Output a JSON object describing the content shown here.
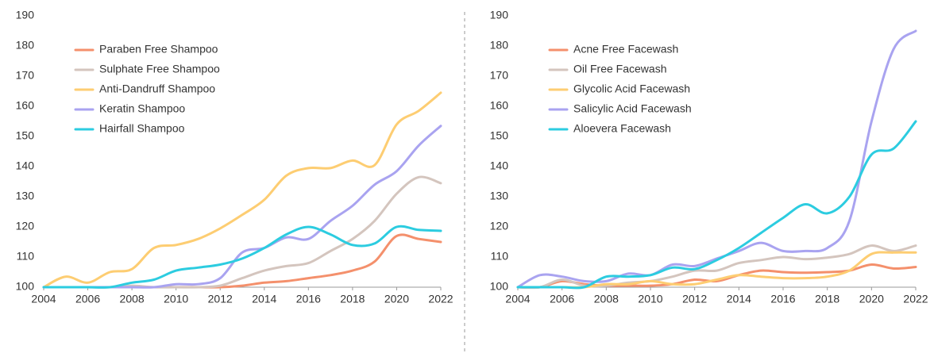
{
  "chart_data": [
    {
      "type": "line",
      "x": [
        2004,
        2005,
        2006,
        2007,
        2008,
        2009,
        2010,
        2011,
        2012,
        2013,
        2014,
        2015,
        2016,
        2017,
        2018,
        2019,
        2020,
        2021,
        2022
      ],
      "xlim": [
        2004,
        2022
      ],
      "xticks": [
        2004,
        2006,
        2008,
        2010,
        2012,
        2014,
        2016,
        2018,
        2020,
        2022
      ],
      "ylim": [
        100,
        190
      ],
      "yticks": [
        100,
        110,
        120,
        130,
        140,
        150,
        160,
        170,
        180,
        190
      ],
      "legend": "upper left",
      "series": [
        {
          "name": "Paraben Free Shampoo",
          "color": "#f4906c",
          "values": [
            100,
            100,
            100,
            100,
            100,
            100,
            100,
            100,
            100,
            100.5,
            101.5,
            102,
            103,
            104,
            105.5,
            108.5,
            117,
            116,
            115
          ]
        },
        {
          "name": "Sulphate Free Shampoo",
          "color": "#d4c5be",
          "values": [
            100,
            100,
            100,
            100,
            100.5,
            100,
            100,
            100,
            100.5,
            103,
            105.5,
            107,
            108,
            112,
            116,
            122,
            131,
            136.5,
            134.5
          ]
        },
        {
          "name": "Anti-Dandruff Shampoo",
          "color": "#fdcd72",
          "values": [
            100,
            103.5,
            101.5,
            105,
            106,
            113,
            114,
            116,
            119.5,
            124,
            129,
            137,
            139.5,
            139.5,
            142,
            140.5,
            154,
            158.5,
            164.5
          ]
        },
        {
          "name": "Keratin Shampoo",
          "color": "#a9a3f0",
          "values": [
            100,
            100,
            100,
            100,
            100,
            100,
            101,
            101,
            103,
            111.5,
            113,
            116.5,
            116,
            122,
            127,
            134,
            138.5,
            147,
            153.5
          ]
        },
        {
          "name": "Hairfall Shampoo",
          "color": "#2ccce0",
          "values": [
            100,
            100,
            100,
            100,
            101.5,
            102.5,
            105.5,
            106.5,
            107.5,
            109.5,
            113,
            117.5,
            120,
            117.5,
            114,
            114.5,
            120,
            119,
            118.7
          ]
        }
      ]
    },
    {
      "type": "line",
      "x": [
        2004,
        2005,
        2006,
        2007,
        2008,
        2009,
        2010,
        2011,
        2012,
        2013,
        2014,
        2015,
        2016,
        2017,
        2018,
        2019,
        2020,
        2021,
        2022
      ],
      "xlim": [
        2004,
        2022
      ],
      "xticks": [
        2004,
        2006,
        2008,
        2010,
        2012,
        2014,
        2016,
        2018,
        2020,
        2022
      ],
      "ylim": [
        100,
        190
      ],
      "yticks": [
        100,
        110,
        120,
        130,
        140,
        150,
        160,
        170,
        180,
        190
      ],
      "legend": "upper left",
      "series": [
        {
          "name": "Acne Free Facewash",
          "color": "#f4906c",
          "values": [
            100,
            100,
            102,
            101,
            100.5,
            100.5,
            100.5,
            101,
            102.5,
            102,
            104,
            105.5,
            105,
            104.8,
            105,
            105.5,
            107.5,
            106.2,
            106.7
          ]
        },
        {
          "name": "Oil Free Facewash",
          "color": "#d4c5be",
          "values": [
            100,
            100,
            102.5,
            100.5,
            100.5,
            101.5,
            102,
            103.5,
            105.5,
            105.5,
            108,
            109,
            110,
            109.3,
            109.8,
            111,
            113.8,
            112,
            113.8
          ]
        },
        {
          "name": "Glycolic Acid Facewash",
          "color": "#fdcd72",
          "values": [
            100,
            100,
            100,
            100,
            101,
            101,
            102,
            101,
            101,
            102.5,
            104,
            103.5,
            103,
            103,
            103.5,
            105.5,
            111,
            111.5,
            111.5
          ]
        },
        {
          "name": "Salicylic Acid Facewash",
          "color": "#a9a3f0",
          "values": [
            100,
            104,
            103.5,
            102,
            102,
            104.5,
            104,
            107.5,
            107,
            109.5,
            112,
            114.7,
            112,
            112,
            113,
            122,
            155,
            179,
            185
          ]
        },
        {
          "name": "Aloevera Facewash",
          "color": "#2ccce0",
          "values": [
            100,
            100,
            100,
            100,
            103.5,
            103.5,
            104,
            106.5,
            106,
            109,
            113,
            118,
            123,
            127.5,
            124.5,
            130,
            144,
            146,
            155
          ]
        }
      ]
    }
  ]
}
